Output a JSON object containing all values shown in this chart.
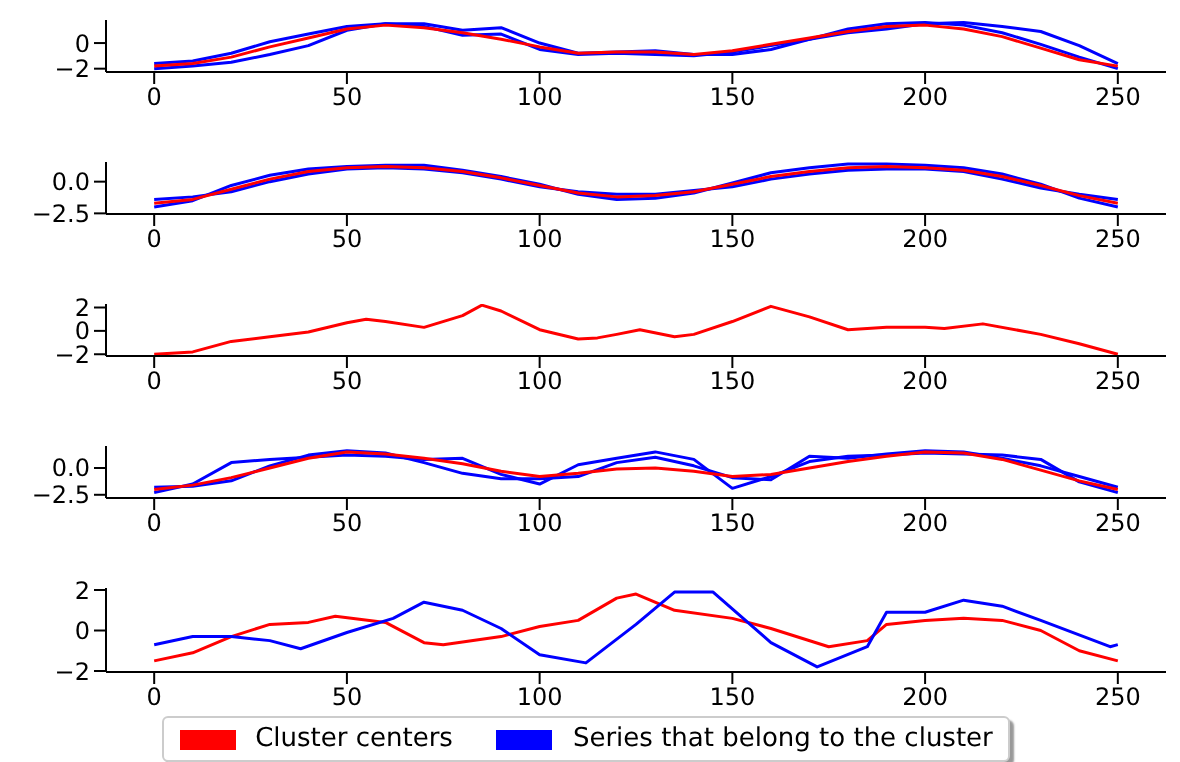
{
  "chart_data": [
    {
      "type": "line",
      "x": [
        0,
        10,
        20,
        30,
        40,
        50,
        60,
        70,
        80,
        90,
        100,
        110,
        120,
        130,
        140,
        150,
        160,
        170,
        180,
        190,
        200,
        210,
        220,
        230,
        240,
        250
      ],
      "xlim": [
        -12.5,
        262.5
      ],
      "xticks": [
        0,
        50,
        100,
        150,
        200,
        250
      ],
      "ylim": [
        -2.26,
        1.8
      ],
      "yticks": [
        {
          "value": -2,
          "label": "−2"
        },
        {
          "value": 0,
          "label": "0"
        }
      ],
      "legend": false,
      "series": [
        {
          "color": "#0000ff",
          "values": [
            -2.0,
            -1.8,
            -1.5,
            -0.9,
            -0.2,
            1.0,
            1.5,
            1.5,
            1.0,
            1.2,
            0.0,
            -0.8,
            -0.7,
            -0.6,
            -0.9,
            -0.9,
            -0.5,
            0.3,
            1.1,
            1.5,
            1.6,
            1.4,
            0.8,
            -0.1,
            -1.1,
            -2.0
          ]
        },
        {
          "color": "#0000ff",
          "values": [
            -1.6,
            -1.4,
            -0.8,
            0.1,
            0.7,
            1.3,
            1.5,
            1.3,
            0.6,
            0.7,
            -0.5,
            -0.9,
            -0.8,
            -0.9,
            -1.0,
            -0.7,
            -0.2,
            0.3,
            0.8,
            1.1,
            1.5,
            1.6,
            1.3,
            0.9,
            -0.2,
            -1.6
          ]
        },
        {
          "color": "#ff0000",
          "values": [
            -1.8,
            -1.6,
            -1.1,
            -0.3,
            0.4,
            1.1,
            1.4,
            1.2,
            0.8,
            0.3,
            -0.3,
            -0.8,
            -0.7,
            -0.7,
            -0.9,
            -0.6,
            -0.1,
            0.4,
            0.9,
            1.3,
            1.4,
            1.1,
            0.5,
            -0.4,
            -1.3,
            -1.8
          ]
        }
      ]
    },
    {
      "type": "line",
      "x": [
        0,
        10,
        20,
        30,
        40,
        50,
        60,
        70,
        80,
        90,
        100,
        110,
        120,
        130,
        140,
        150,
        160,
        170,
        180,
        190,
        200,
        210,
        220,
        230,
        240,
        250
      ],
      "xlim": [
        -12.5,
        262.5
      ],
      "xticks": [
        0,
        50,
        100,
        150,
        200,
        250
      ],
      "ylim": [
        -2.55,
        1.55
      ],
      "yticks": [
        {
          "value": -2.5,
          "label": "−2.5"
        },
        {
          "value": 0,
          "label": "0.0"
        }
      ],
      "legend": false,
      "series": [
        {
          "color": "#0000ff",
          "values": [
            -2.0,
            -1.5,
            -0.3,
            0.5,
            1.0,
            1.2,
            1.3,
            1.3,
            0.9,
            0.4,
            -0.2,
            -1.0,
            -1.4,
            -1.3,
            -0.9,
            -0.1,
            0.7,
            1.1,
            1.4,
            1.4,
            1.3,
            1.1,
            0.6,
            -0.2,
            -1.3,
            -2.0
          ]
        },
        {
          "color": "#0000ff",
          "values": [
            -1.4,
            -1.2,
            -0.8,
            0.0,
            0.6,
            1.0,
            1.1,
            1.0,
            0.7,
            0.2,
            -0.4,
            -0.8,
            -1.0,
            -1.0,
            -0.7,
            -0.4,
            0.2,
            0.6,
            0.9,
            1.0,
            1.0,
            0.8,
            0.2,
            -0.5,
            -1.0,
            -1.4
          ]
        },
        {
          "color": "#ff0000",
          "values": [
            -1.7,
            -1.4,
            -0.6,
            0.2,
            0.8,
            1.1,
            1.2,
            1.1,
            0.8,
            0.3,
            -0.3,
            -0.9,
            -1.2,
            -1.1,
            -0.8,
            -0.2,
            0.4,
            0.8,
            1.1,
            1.2,
            1.1,
            0.9,
            0.4,
            -0.3,
            -1.1,
            -1.7
          ]
        }
      ]
    },
    {
      "type": "line",
      "x": [
        0,
        10,
        20,
        30,
        40,
        50,
        55,
        60,
        70,
        80,
        85,
        90,
        100,
        110,
        115,
        120,
        126,
        135,
        140,
        150,
        160,
        170,
        180,
        190,
        200,
        205,
        215,
        230,
        240,
        250
      ],
      "xlim": [
        -12.5,
        262.5
      ],
      "xticks": [
        0,
        50,
        100,
        150,
        200,
        250
      ],
      "ylim": [
        -2.15,
        2.3
      ],
      "yticks": [
        {
          "value": -2,
          "label": "−2"
        },
        {
          "value": 0,
          "label": "0"
        },
        {
          "value": 2,
          "label": "2"
        }
      ],
      "legend": false,
      "series": [
        {
          "color": "#ff0000",
          "values": [
            -2.0,
            -1.8,
            -0.9,
            -0.5,
            -0.1,
            0.7,
            1.0,
            0.8,
            0.3,
            1.3,
            2.2,
            1.7,
            0.1,
            -0.7,
            -0.6,
            -0.3,
            0.1,
            -0.5,
            -0.3,
            0.8,
            2.1,
            1.2,
            0.1,
            0.3,
            0.3,
            0.2,
            0.6,
            -0.3,
            -1.1,
            -2.0
          ]
        }
      ]
    },
    {
      "type": "line",
      "x": [
        0,
        10,
        20,
        30,
        40,
        50,
        60,
        70,
        80,
        90,
        100,
        110,
        120,
        130,
        140,
        150,
        160,
        170,
        180,
        190,
        200,
        210,
        220,
        230,
        240,
        250
      ],
      "xlim": [
        -12.5,
        262.5
      ],
      "xticks": [
        0,
        50,
        100,
        150,
        200,
        250
      ],
      "ylim": [
        -2.8,
        2.05
      ],
      "yticks": [
        {
          "value": -2.5,
          "label": "−2.5"
        },
        {
          "value": 0,
          "label": "0.0"
        }
      ],
      "legend": false,
      "series": [
        {
          "color": "#0000ff",
          "values": [
            -2.3,
            -1.5,
            0.5,
            0.8,
            1.0,
            1.2,
            1.1,
            0.8,
            0.9,
            -0.6,
            -1.5,
            0.3,
            0.9,
            1.5,
            0.8,
            -1.9,
            -0.8,
            0.6,
            1.1,
            1.2,
            1.4,
            1.3,
            1.2,
            0.8,
            -1.3,
            -2.3
          ]
        },
        {
          "color": "#0000ff",
          "values": [
            -1.8,
            -1.7,
            -1.2,
            0.2,
            1.2,
            1.6,
            1.4,
            0.5,
            -0.5,
            -1.0,
            -1.0,
            -0.8,
            0.5,
            1.0,
            0.2,
            -0.9,
            -1.1,
            1.1,
            0.9,
            1.3,
            1.6,
            1.5,
            0.9,
            0.2,
            -0.8,
            -1.8
          ]
        },
        {
          "color": "#ff0000",
          "values": [
            -2.0,
            -1.6,
            -0.9,
            0.0,
            0.9,
            1.5,
            1.3,
            0.9,
            0.4,
            -0.3,
            -0.8,
            -0.5,
            -0.1,
            0.0,
            -0.3,
            -0.8,
            -0.6,
            0.0,
            0.6,
            1.1,
            1.5,
            1.4,
            0.8,
            -0.2,
            -1.2,
            -2.0
          ]
        }
      ]
    },
    {
      "type": "line",
      "xlim": [
        -12.5,
        262.5
      ],
      "xticks": [
        0,
        50,
        100,
        150,
        200,
        250
      ],
      "ylim": [
        -2.05,
        2.1
      ],
      "yticks": [
        {
          "value": -2,
          "label": "−2"
        },
        {
          "value": 0,
          "label": "0"
        },
        {
          "value": 2,
          "label": "2"
        }
      ],
      "legend": "bottom",
      "series": [
        {
          "name": "Cluster centers",
          "color": "#ff0000",
          "x": [
            0,
            10,
            20,
            30,
            40,
            47,
            60,
            70,
            75,
            90,
            100,
            110,
            120,
            125,
            135,
            150,
            160,
            175,
            185,
            190,
            200,
            210,
            220,
            230,
            240,
            250
          ],
          "values": [
            -1.5,
            -1.1,
            -0.3,
            0.3,
            0.4,
            0.7,
            0.4,
            -0.6,
            -0.7,
            -0.3,
            0.2,
            0.5,
            1.6,
            1.8,
            1.0,
            0.6,
            0.1,
            -0.8,
            -0.5,
            0.3,
            0.5,
            0.6,
            0.5,
            0.0,
            -1.0,
            -1.5
          ]
        },
        {
          "name": "Series that belong to the cluster",
          "color": "#0000ff",
          "x": [
            0,
            10,
            20,
            30,
            38,
            50,
            62,
            70,
            80,
            90,
            100,
            112,
            125,
            135,
            145,
            160,
            172,
            185,
            190,
            200,
            210,
            220,
            230,
            248,
            250
          ],
          "values": [
            -0.7,
            -0.3,
            -0.3,
            -0.5,
            -0.9,
            -0.1,
            0.6,
            1.4,
            1.0,
            0.1,
            -1.2,
            -1.6,
            0.3,
            1.9,
            1.9,
            -0.6,
            -1.8,
            -0.8,
            0.9,
            0.9,
            1.5,
            1.2,
            0.5,
            -0.8,
            -0.7
          ]
        }
      ]
    }
  ]
}
